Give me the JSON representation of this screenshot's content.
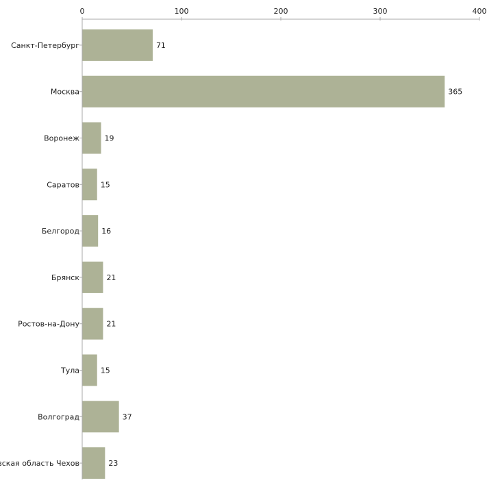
{
  "chart_data": {
    "type": "bar",
    "orientation": "horizontal",
    "title": "",
    "xlabel": "",
    "ylabel": "",
    "xlim": [
      0,
      400
    ],
    "ticks": [
      0,
      100,
      200,
      300,
      400
    ],
    "tick_labels": [
      "0",
      "100",
      "200",
      "300",
      "400"
    ],
    "categories": [
      "Санкт-Петербург",
      "Москва",
      "Воронеж",
      "Саратов",
      "Белгород",
      "Брянск",
      "Ростов-на-Дону",
      "Тула",
      "Волгоград",
      "Московская область Чехов"
    ],
    "values": [
      71,
      365,
      19,
      15,
      16,
      21,
      21,
      15,
      37,
      23
    ],
    "value_labels": [
      "71",
      "365",
      "19",
      "15",
      "16",
      "21",
      "21",
      "15",
      "37",
      "23"
    ],
    "bar_color": "#adb296",
    "axis_color": "#aaaaaa",
    "text_color": "#222222",
    "grid": false,
    "legend": "none"
  }
}
